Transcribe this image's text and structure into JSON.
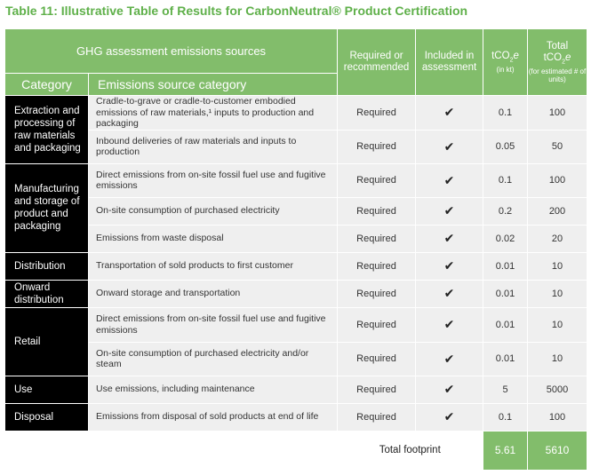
{
  "title": "Table 11: Illustrative Table of Results for CarbonNeutral® Product Certification",
  "header": {
    "ghg_sources": "GHG assessment emissions sources",
    "category": "Category",
    "emissions_source_category": "Emissions source category",
    "required_or_recommended": "Required or recommended",
    "included_in_assessment": "Included in assessment",
    "tco2e_main": "tCO",
    "tco2e_sub": "2",
    "tco2e_e": "e",
    "tco2e_unit": "(in kt)",
    "total_label": "Total",
    "total_main": "tCO",
    "total_sub": "2",
    "total_e": "e",
    "total_note": "(for estimated # of units)"
  },
  "check_mark": "✔",
  "categories": [
    {
      "name": "Extraction and processing of raw materials and packaging",
      "rows": [
        {
          "source": "Cradle-to-grave or cradle-to-customer embodied emissions of raw materials,¹ inputs to production and packaging",
          "required": "Required",
          "tco2e": "0.1",
          "total": "100"
        },
        {
          "source": "Inbound deliveries of raw materials and inputs to production",
          "required": "Required",
          "tco2e": "0.05",
          "total": "50"
        }
      ]
    },
    {
      "name": "Manufacturing and storage of product and packaging",
      "rows": [
        {
          "source": "Direct emissions from on-site fossil fuel use and fugitive emissions",
          "required": "Required",
          "tco2e": "0.1",
          "total": "100"
        },
        {
          "source": "On-site consumption of purchased electricity",
          "required": "Required",
          "tco2e": "0.2",
          "total": "200"
        },
        {
          "source": "Emissions from waste disposal",
          "required": "Required",
          "tco2e": "0.02",
          "total": "20"
        }
      ]
    },
    {
      "name": "Distribution",
      "rows": [
        {
          "source": "Transportation of sold products to first customer",
          "required": "Required",
          "tco2e": "0.01",
          "total": "10"
        }
      ]
    },
    {
      "name": "Onward distribution",
      "rows": [
        {
          "source": "Onward storage and transportation",
          "required": "Required",
          "tco2e": "0.01",
          "total": "10"
        }
      ]
    },
    {
      "name": "Retail",
      "rows": [
        {
          "source": "Direct emissions from on-site fossil fuel use and fugitive emissions",
          "required": "Required",
          "tco2e": "0.01",
          "total": "10"
        },
        {
          "source": "On-site consumption of purchased electricity and/or steam",
          "required": "Required",
          "tco2e": "0.01",
          "total": "10"
        }
      ]
    },
    {
      "name": "Use",
      "rows": [
        {
          "source": "Use emissions, including maintenance",
          "required": "Required",
          "tco2e": "5",
          "total": "5000"
        }
      ]
    },
    {
      "name": "Disposal",
      "rows": [
        {
          "source": "Emissions from disposal of sold products at end of life",
          "required": "Required",
          "tco2e": "0.1",
          "total": "100"
        }
      ]
    }
  ],
  "footer": {
    "label": "Total footprint",
    "tco2e": "5.61",
    "total": "5610"
  },
  "colors": {
    "title_green": "#5fb04a",
    "header_green": "#82bd6b",
    "category_black": "#000000",
    "row_gray": "#efefef"
  }
}
